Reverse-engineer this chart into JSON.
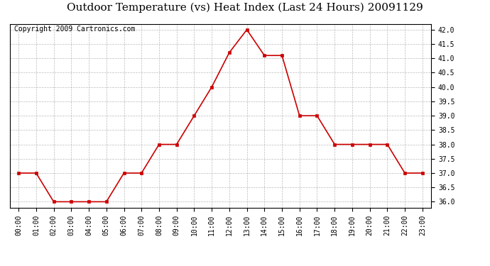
{
  "title": "Outdoor Temperature (vs) Heat Index (Last 24 Hours) 20091129",
  "copyright_text": "Copyright 2009 Cartronics.com",
  "x_labels": [
    "00:00",
    "01:00",
    "02:00",
    "03:00",
    "04:00",
    "05:00",
    "06:00",
    "07:00",
    "08:00",
    "09:00",
    "10:00",
    "11:00",
    "12:00",
    "13:00",
    "14:00",
    "15:00",
    "16:00",
    "17:00",
    "18:00",
    "19:00",
    "20:00",
    "21:00",
    "22:00",
    "23:00"
  ],
  "y_values": [
    37.0,
    37.0,
    36.0,
    36.0,
    36.0,
    36.0,
    37.0,
    37.0,
    38.0,
    38.0,
    39.0,
    40.0,
    41.2,
    42.0,
    41.1,
    41.1,
    39.0,
    39.0,
    38.0,
    38.0,
    38.0,
    38.0,
    37.0,
    37.0
  ],
  "line_color": "#cc0000",
  "marker": "s",
  "marker_size": 3,
  "ylim_min": 36.0,
  "ylim_max": 42.0,
  "ytick_min": 36.0,
  "ytick_max": 42.0,
  "ytick_step": 0.5,
  "background_color": "#ffffff",
  "grid_color": "#aaaaaa",
  "title_fontsize": 11,
  "copyright_fontsize": 7,
  "tick_fontsize": 7,
  "fig_width": 6.9,
  "fig_height": 3.75,
  "dpi": 100
}
